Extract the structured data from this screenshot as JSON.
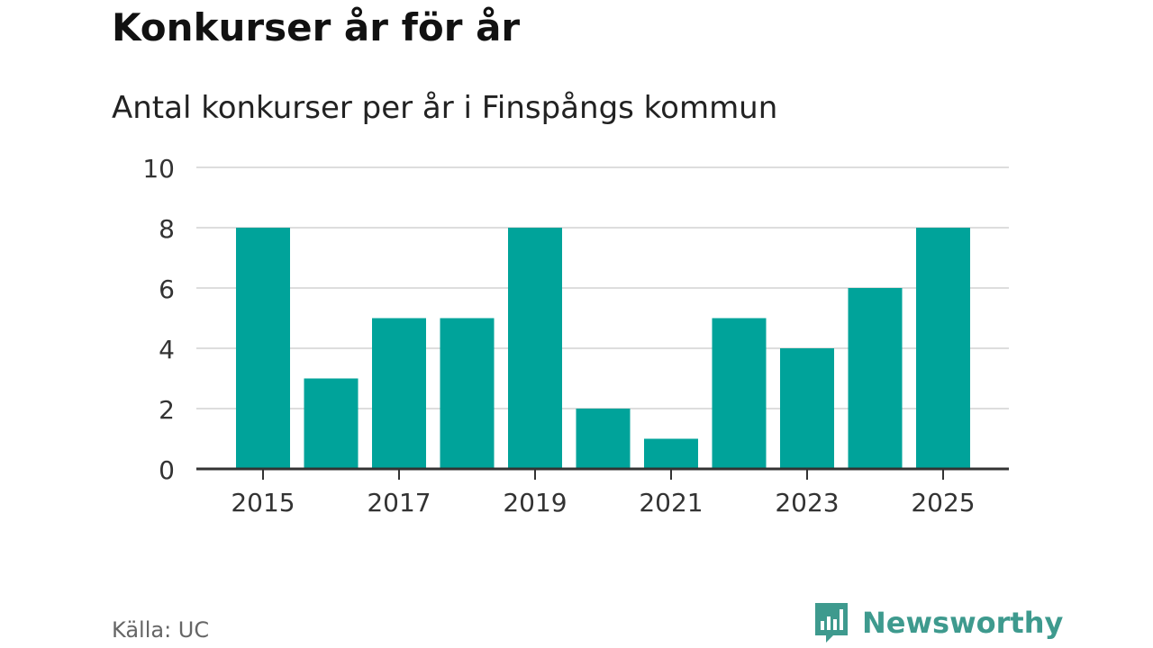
{
  "title": "Konkurser år för år",
  "subtitle": "Antal konkurser per år i Finspångs kommun",
  "source": "Källa: UC",
  "brand": {
    "name": "Newsworthy",
    "icon": "newsworthy-logo-icon",
    "color": "#3e9a8e"
  },
  "chart_data": {
    "type": "bar",
    "categories": [
      "2015",
      "2016",
      "2017",
      "2018",
      "2019",
      "2020",
      "2021",
      "2022",
      "2023",
      "2024",
      "2025"
    ],
    "values": [
      8,
      3,
      5,
      5,
      8,
      2,
      1,
      5,
      4,
      6,
      8
    ],
    "x_tick_labels": [
      "2015",
      "2017",
      "2019",
      "2021",
      "2023",
      "2025"
    ],
    "y_ticks": [
      0,
      2,
      4,
      6,
      8,
      10
    ],
    "ylim": [
      0,
      10
    ],
    "xlabel": "",
    "ylabel": "",
    "grid": true,
    "bar_color": "#00a39a",
    "grid_color": "#dddddd",
    "axis_color": "#333333"
  }
}
